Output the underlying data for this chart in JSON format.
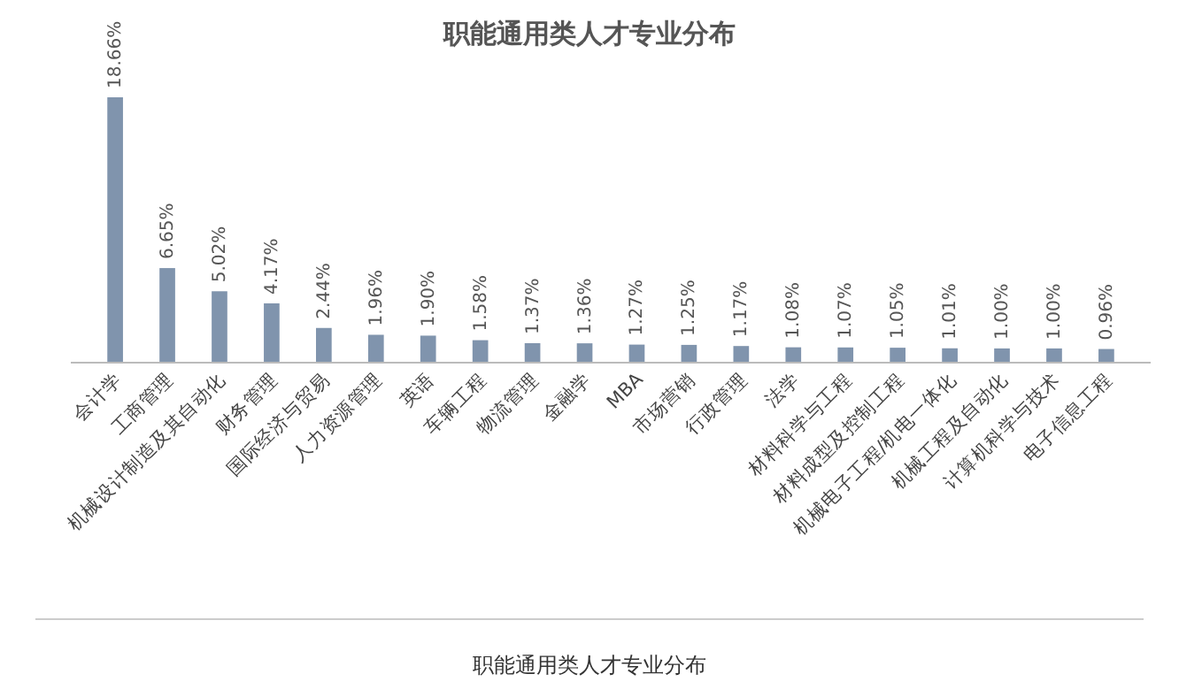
{
  "chart_data": {
    "type": "bar",
    "title": "职能通用类人才专业分布",
    "categories": [
      "会计学",
      "工商管理",
      "机械设计制造及其自动化",
      "财务管理",
      "国际经济与贸易",
      "人力资源管理",
      "英语",
      "车辆工程",
      "物流管理",
      "金融学",
      "MBA",
      "市场营销",
      "行政管理",
      "法学",
      "材料科学与工程",
      "材料成型及控制工程",
      "机械电子工程/机电一体化",
      "机械工程及自动化",
      "计算机科学与技术",
      "电子信息工程"
    ],
    "values": [
      18.66,
      6.65,
      5.02,
      4.17,
      2.44,
      1.96,
      1.9,
      1.58,
      1.37,
      1.36,
      1.27,
      1.25,
      1.17,
      1.08,
      1.07,
      1.05,
      1.01,
      1.0,
      1.0,
      0.96
    ],
    "value_labels": [
      "18.66%",
      "6.65%",
      "5.02%",
      "4.17%",
      "2.44%",
      "1.96%",
      "1.90%",
      "1.58%",
      "1.37%",
      "1.36%",
      "1.27%",
      "1.25%",
      "1.17%",
      "1.08%",
      "1.07%",
      "1.05%",
      "1.01%",
      "1.00%",
      "1.00%",
      "0.96%"
    ],
    "color": "#8094ad",
    "annotations": [
      "职能通用类人才专业分布"
    ]
  }
}
